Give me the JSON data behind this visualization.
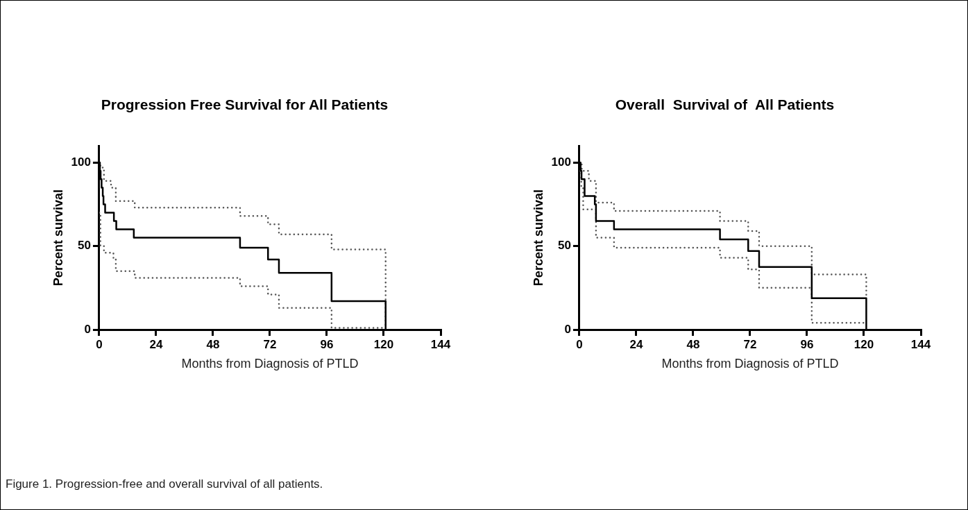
{
  "chart_data": [
    {
      "type": "step",
      "title": "Progression Free Survival for All Patients",
      "xlabel": "Months from Diagnosis of PTLD",
      "ylabel": "Percent survival",
      "xlim": [
        0,
        144
      ],
      "xticks": [
        0,
        24,
        48,
        72,
        96,
        120,
        144
      ],
      "ylim": [
        0,
        110
      ],
      "yticks": [
        0,
        50,
        100
      ],
      "grid": false,
      "legend": false,
      "marker": "none",
      "series": [
        {
          "color": "#000000",
          "line_style": "solid",
          "x": [
            0,
            0.3,
            0.6,
            1,
            1.5,
            1.8,
            2.5,
            6.2,
            7.2,
            14.6,
            59.4,
            71.2,
            75.8,
            98,
            120.8
          ],
          "values": [
            100,
            95,
            90,
            85,
            80,
            75,
            70,
            65,
            60,
            55,
            49,
            42,
            34,
            17,
            0
          ]
        },
        {
          "color": "#555555",
          "line_style": "dotted",
          "x": [
            0,
            0.5,
            2,
            5,
            7,
            15,
            59.4,
            71.2,
            75.8,
            98,
            120.8
          ],
          "values": [
            100,
            97,
            89,
            85,
            77,
            73,
            68,
            63,
            57,
            48,
            1
          ]
        },
        {
          "color": "#555555",
          "line_style": "dotted",
          "x": [
            0,
            0.5,
            2,
            6,
            7,
            15,
            59.4,
            71.2,
            75.8,
            98,
            120.8
          ],
          "values": [
            70,
            50,
            46,
            43,
            35,
            31,
            26,
            21,
            13,
            1,
            1
          ]
        }
      ],
      "annotations": [
        "Figure 1. Progression-free and overall survival of all patients."
      ]
    },
    {
      "type": "step",
      "title": "Overall  Survival of  All Patients",
      "xlabel": "Months from Diagnosis of PTLD",
      "ylabel": "Percent survival",
      "xlim": [
        0,
        144
      ],
      "xticks": [
        0,
        24,
        48,
        72,
        96,
        120,
        144
      ],
      "ylim": [
        0,
        110
      ],
      "yticks": [
        0,
        50,
        100
      ],
      "grid": false,
      "legend": false,
      "marker": "none",
      "series": [
        {
          "color": "#000000",
          "line_style": "solid",
          "x": [
            0,
            0.5,
            0.9,
            2.2,
            6.5,
            7,
            14.6,
            59.3,
            71.2,
            75.8,
            98,
            121
          ],
          "values": [
            100,
            95,
            90,
            80,
            75,
            65,
            60,
            54,
            47,
            37.5,
            18.8,
            0
          ]
        },
        {
          "color": "#555555",
          "line_style": "dotted",
          "x": [
            0,
            1,
            4,
            7,
            14.6,
            59.3,
            71.2,
            75.8,
            98,
            121
          ],
          "values": [
            100,
            95,
            89,
            76,
            71,
            65,
            59,
            50,
            33,
            19
          ]
        },
        {
          "color": "#555555",
          "line_style": "dotted",
          "x": [
            0,
            0.8,
            1.6,
            7,
            14.6,
            59.3,
            71.2,
            75.8,
            98,
            121
          ],
          "values": [
            95,
            85,
            72,
            55,
            49,
            43,
            36,
            25,
            4,
            4
          ]
        }
      ]
    }
  ]
}
